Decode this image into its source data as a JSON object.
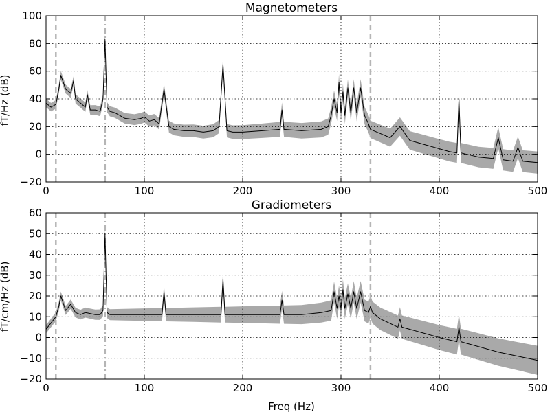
{
  "chart_data": [
    {
      "type": "area",
      "title": "Magnetometers",
      "xlabel": "",
      "ylabel": "fT/Hz (dB)",
      "xlim": [
        0,
        500
      ],
      "ylim": [
        -20,
        100
      ],
      "xticks": [
        "0",
        "100",
        "200",
        "300",
        "400",
        "500"
      ],
      "yticks": [
        "−20",
        "0",
        "20",
        "40",
        "60",
        "80",
        "100"
      ],
      "grid": true,
      "vlines": [
        {
          "x": 10,
          "style": "dashed"
        },
        {
          "x": 60,
          "style": "dashdot"
        },
        {
          "x": 330,
          "style": "dashed"
        }
      ],
      "series": [
        {
          "x": [
            0,
            5,
            10,
            13,
            15,
            20,
            25,
            28,
            30,
            35,
            40,
            42,
            45,
            50,
            55,
            58,
            60,
            62,
            65,
            70,
            80,
            90,
            97,
            100,
            105,
            110,
            115,
            120,
            125,
            130,
            140,
            150,
            160,
            170,
            176,
            180,
            184,
            190,
            200,
            220,
            238,
            240,
            242,
            260,
            280,
            287,
            290,
            293,
            296,
            298,
            300,
            302,
            304,
            307,
            310,
            313,
            316,
            320,
            324,
            328,
            330,
            340,
            350,
            360,
            370,
            380,
            400,
            410,
            418,
            420,
            422,
            440,
            455,
            460,
            465,
            475,
            480,
            485,
            500
          ],
          "values": [
            37,
            34,
            36,
            47,
            57,
            47,
            44,
            53,
            40,
            37,
            34,
            43,
            32,
            32,
            31,
            40,
            83,
            34,
            31,
            30,
            26,
            25,
            26,
            27,
            24,
            25,
            22,
            47,
            20,
            18,
            17,
            17,
            16,
            17,
            20,
            65,
            17,
            16,
            16,
            17,
            18,
            32,
            18,
            17,
            18,
            20,
            28,
            40,
            30,
            52,
            30,
            45,
            28,
            48,
            30,
            48,
            30,
            48,
            28,
            22,
            18,
            15,
            12,
            20,
            10,
            8,
            4,
            2,
            1,
            40,
            1,
            -2,
            -3,
            12,
            -4,
            -5,
            5,
            -5,
            -6
          ]
        }
      ]
    },
    {
      "type": "area",
      "title": "Gradiometers",
      "xlabel": "Freq (Hz)",
      "ylabel": "fT/cm/Hz (dB)",
      "xlim": [
        0,
        500
      ],
      "ylim": [
        -20,
        60
      ],
      "xticks": [
        "0",
        "100",
        "200",
        "300",
        "400",
        "500"
      ],
      "yticks": [
        "−20",
        "−10",
        "0",
        "10",
        "20",
        "30",
        "40",
        "50",
        "60"
      ],
      "grid": true,
      "vlines": [
        {
          "x": 10,
          "style": "dashed"
        },
        {
          "x": 60,
          "style": "dashdot"
        },
        {
          "x": 330,
          "style": "dashed"
        }
      ],
      "series": [
        {
          "x": [
            0,
            5,
            10,
            13,
            15,
            20,
            25,
            30,
            35,
            40,
            50,
            55,
            58,
            60,
            62,
            65,
            80,
            100,
            118,
            120,
            122,
            150,
            178,
            180,
            182,
            200,
            238,
            240,
            242,
            260,
            280,
            290,
            293,
            296,
            298,
            300,
            302,
            304,
            307,
            310,
            313,
            316,
            320,
            324,
            328,
            330,
            332,
            340,
            358,
            360,
            362,
            400,
            418,
            420,
            422,
            460,
            480,
            500
          ],
          "values": [
            4,
            7,
            10,
            15,
            20,
            13,
            16,
            12,
            11,
            12,
            11,
            11,
            13,
            50,
            12,
            11,
            11,
            11,
            11,
            22,
            11,
            11,
            11,
            28,
            11,
            11,
            11,
            18,
            11,
            11,
            12,
            13,
            22,
            14,
            20,
            14,
            23,
            14,
            21,
            14,
            22,
            14,
            22,
            13,
            12,
            15,
            12,
            9,
            5,
            9,
            5,
            0,
            -2,
            5,
            -2,
            -7,
            -9,
            -11
          ]
        }
      ]
    }
  ]
}
